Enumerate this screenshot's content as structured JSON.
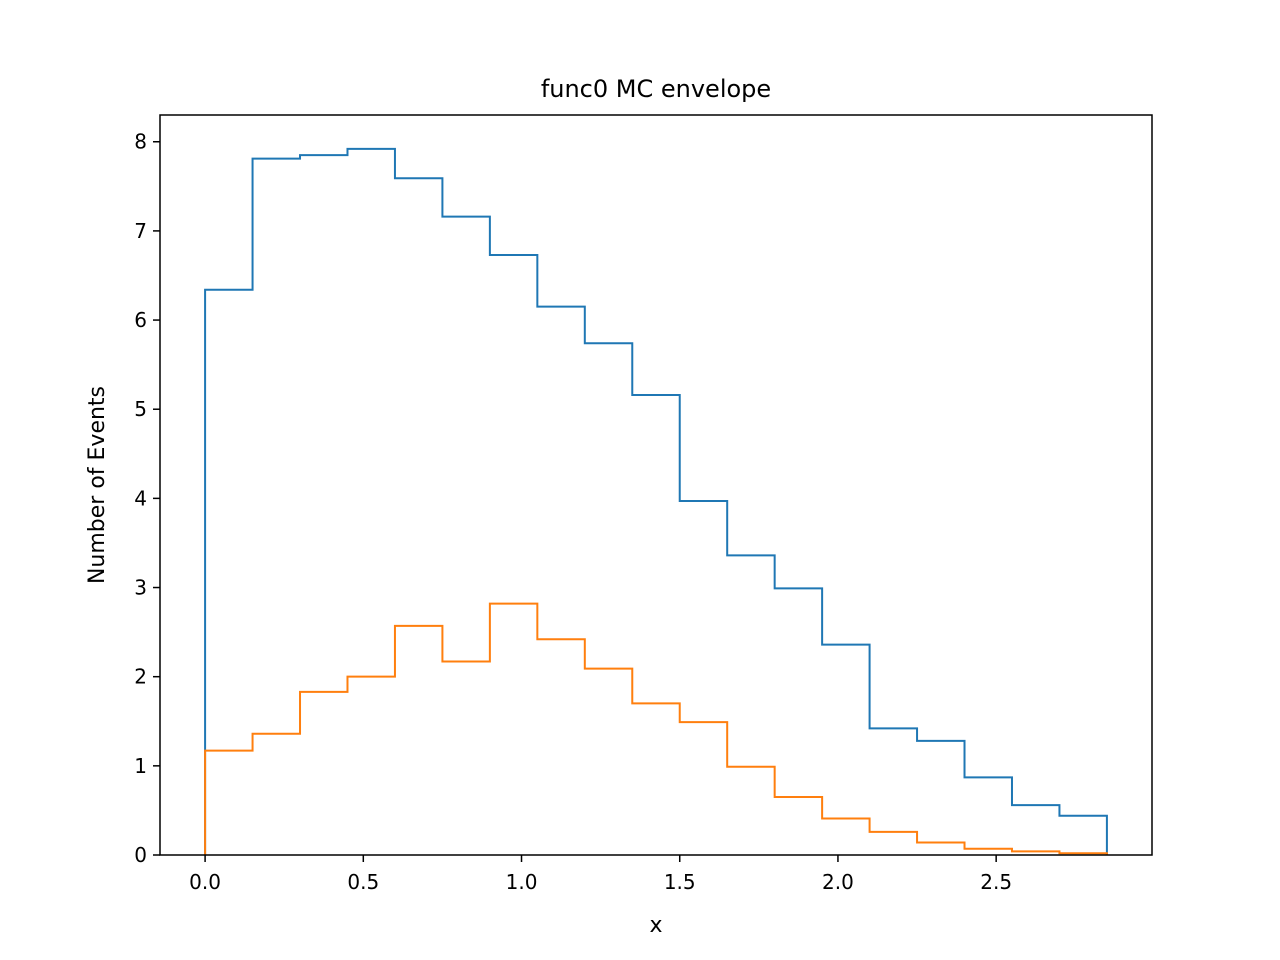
{
  "chart_data": {
    "type": "histogram-step",
    "title": "func0 MC envelope",
    "xlabel": "x",
    "ylabel": "Number of Events",
    "xlim": [
      -0.1425,
      2.9925
    ],
    "ylim": [
      0,
      8.3
    ],
    "x_ticks": [
      "0.0",
      "0.5",
      "1.0",
      "1.5",
      "2.0",
      "2.5"
    ],
    "y_ticks": [
      "0",
      "1",
      "2",
      "3",
      "4",
      "5",
      "6",
      "7",
      "8"
    ],
    "bin_edges": [
      0.0,
      0.15,
      0.3,
      0.45,
      0.6,
      0.75,
      0.9,
      1.05,
      1.2,
      1.35,
      1.5,
      1.65,
      1.8,
      1.95,
      2.1,
      2.25,
      2.4,
      2.55,
      2.7,
      2.85
    ],
    "series": [
      {
        "color": "#1f77b4",
        "values": [
          6.34,
          7.81,
          7.85,
          7.92,
          7.59,
          7.16,
          6.73,
          6.15,
          5.74,
          5.16,
          3.97,
          3.36,
          2.99,
          2.36,
          1.42,
          1.28,
          0.87,
          0.56,
          0.44
        ]
      },
      {
        "color": "#ff7f0e",
        "values": [
          1.17,
          1.36,
          1.83,
          2.0,
          2.57,
          2.17,
          2.82,
          2.42,
          2.09,
          1.7,
          1.49,
          0.99,
          0.65,
          0.41,
          0.26,
          0.14,
          0.07,
          0.04,
          0.02
        ]
      }
    ],
    "grid": false,
    "legend": "none"
  }
}
